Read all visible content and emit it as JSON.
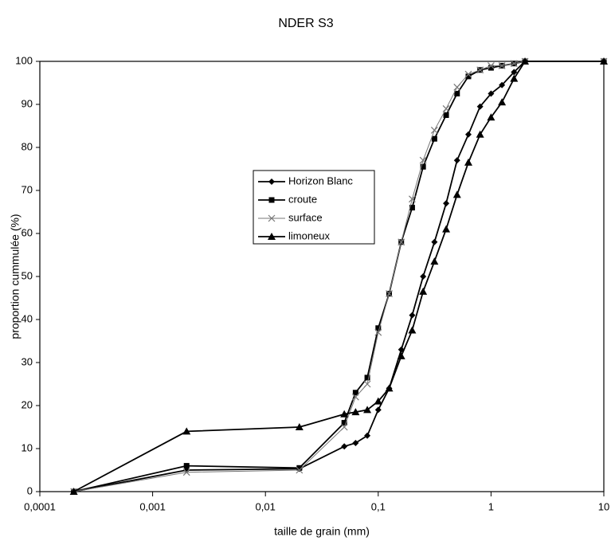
{
  "chart_data": {
    "type": "line",
    "title": "NDER S3",
    "x_label": "taille de grain (mm)",
    "y_label": "proportion cummulée (%)",
    "x_scale": "log",
    "xlim": [
      0.0001,
      10
    ],
    "xticks": [
      {
        "value": 0.0001,
        "label": "0,0001"
      },
      {
        "value": 0.001,
        "label": "0,001"
      },
      {
        "value": 0.01,
        "label": "0,01"
      },
      {
        "value": 0.1,
        "label": "0,1"
      },
      1,
      10
    ],
    "ylim": [
      0,
      100
    ],
    "yticks": [
      0,
      10,
      20,
      30,
      40,
      50,
      60,
      70,
      80,
      90,
      100
    ],
    "grid": false,
    "x": [
      0.0002,
      0.002,
      0.02,
      0.05,
      0.063,
      0.08,
      0.1,
      0.125,
      0.16,
      0.2,
      0.25,
      0.315,
      0.4,
      0.5,
      0.63,
      0.8,
      1,
      1.25,
      1.6,
      2,
      10
    ],
    "series": [
      {
        "name": "Horizon Blanc",
        "color": "#000000",
        "marker": "diamond",
        "values": [
          0,
          5,
          5.3,
          10.5,
          11.3,
          13,
          19,
          24,
          33,
          41,
          50,
          58,
          67,
          77,
          83,
          89.5,
          92.5,
          94.5,
          97.5,
          100,
          100
        ]
      },
      {
        "name": "croute",
        "color": "#000000",
        "marker": "square",
        "values": [
          0,
          6,
          5.5,
          16,
          23,
          26.5,
          38,
          46,
          58,
          66,
          75.5,
          82,
          87.5,
          92.5,
          96.5,
          98,
          98.5,
          99,
          99.5,
          100,
          100
        ]
      },
      {
        "name": "surface",
        "color": "#777777",
        "marker": "cross",
        "values": [
          0,
          4.5,
          5,
          15,
          22,
          25,
          37,
          46,
          58,
          68,
          77,
          84,
          89,
          94,
          97,
          98,
          99,
          99,
          99.5,
          100,
          100
        ]
      },
      {
        "name": "limoneux",
        "color": "#000000",
        "marker": "triangle",
        "values": [
          0,
          14,
          15,
          18,
          18.5,
          19,
          21,
          24,
          31.5,
          37.5,
          46.5,
          53.5,
          61,
          69,
          76.5,
          83,
          87,
          90.5,
          96,
          100,
          100
        ]
      }
    ]
  }
}
